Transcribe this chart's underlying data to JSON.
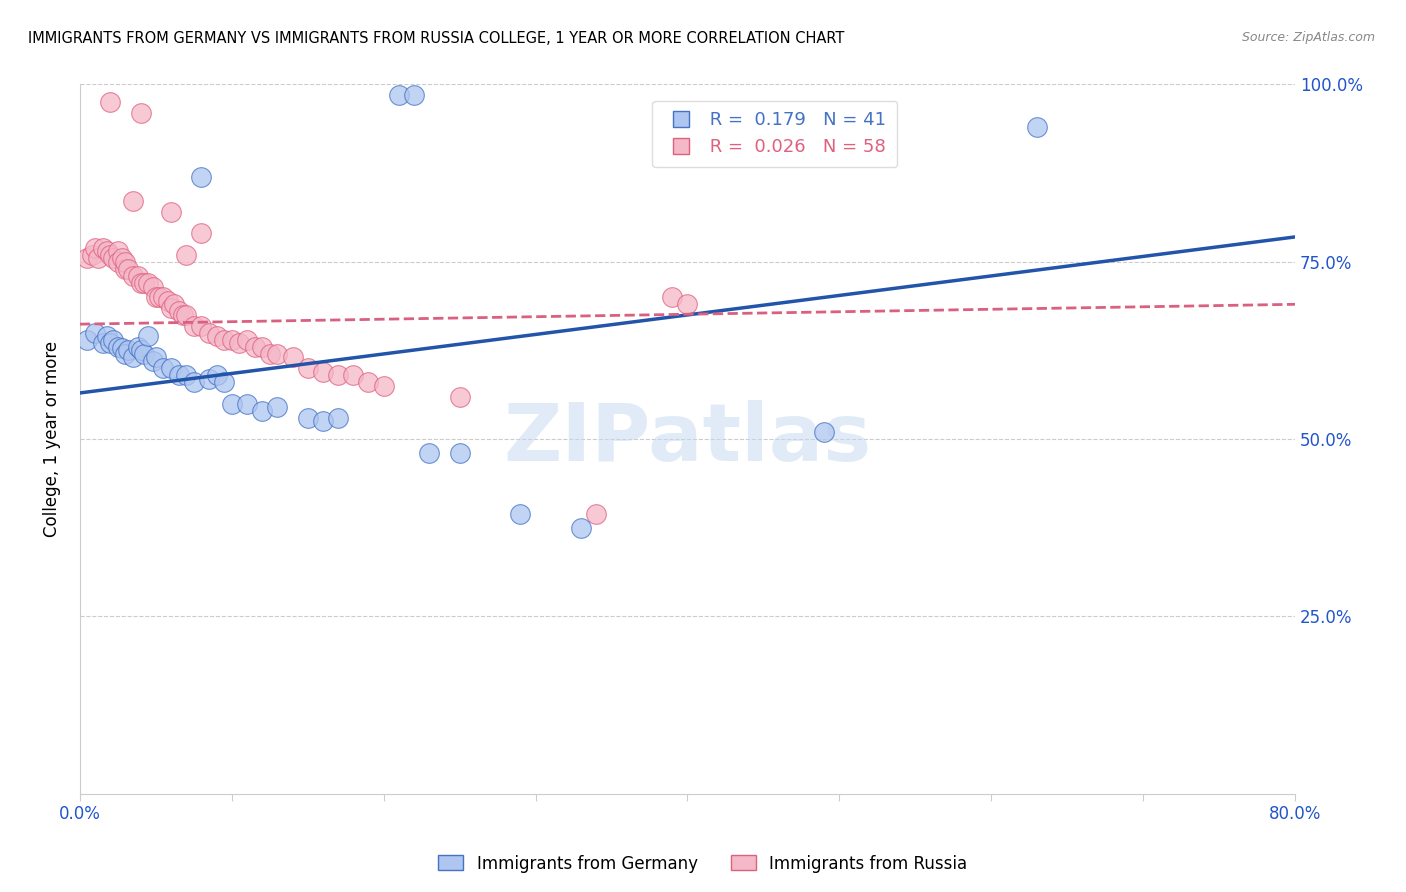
{
  "title": "IMMIGRANTS FROM GERMANY VS IMMIGRANTS FROM RUSSIA COLLEGE, 1 YEAR OR MORE CORRELATION CHART",
  "source": "Source: ZipAtlas.com",
  "ylabel": "College, 1 year or more",
  "xlim": [
    0.0,
    0.8
  ],
  "ylim": [
    0.0,
    1.0
  ],
  "legend_blue_R": "0.179",
  "legend_blue_N": "41",
  "legend_pink_R": "0.026",
  "legend_pink_N": "58",
  "blue_fill": "#aec6f0",
  "blue_edge": "#4472c4",
  "pink_fill": "#f4b8c8",
  "pink_edge": "#e06080",
  "blue_line_color": "#2255aa",
  "pink_line_color": "#d96080",
  "watermark_color": "#c5d8f0",
  "germany_x": [
    0.005,
    0.01,
    0.015,
    0.018,
    0.02,
    0.022,
    0.025,
    0.028,
    0.03,
    0.032,
    0.035,
    0.038,
    0.04,
    0.042,
    0.045,
    0.048,
    0.05,
    0.055,
    0.06,
    0.065,
    0.07,
    0.075,
    0.08,
    0.085,
    0.09,
    0.095,
    0.1,
    0.11,
    0.12,
    0.13,
    0.15,
    0.16,
    0.17,
    0.21,
    0.22,
    0.23,
    0.25,
    0.29,
    0.33,
    0.49,
    0.63
  ],
  "germany_y": [
    0.64,
    0.65,
    0.635,
    0.645,
    0.635,
    0.64,
    0.63,
    0.628,
    0.62,
    0.625,
    0.615,
    0.63,
    0.625,
    0.62,
    0.645,
    0.61,
    0.615,
    0.6,
    0.6,
    0.59,
    0.59,
    0.58,
    0.87,
    0.585,
    0.59,
    0.58,
    0.55,
    0.55,
    0.54,
    0.545,
    0.53,
    0.525,
    0.53,
    0.985,
    0.985,
    0.48,
    0.48,
    0.395,
    0.375,
    0.51,
    0.94
  ],
  "russia_x": [
    0.005,
    0.008,
    0.01,
    0.012,
    0.015,
    0.018,
    0.02,
    0.022,
    0.025,
    0.025,
    0.028,
    0.03,
    0.03,
    0.032,
    0.035,
    0.038,
    0.04,
    0.042,
    0.045,
    0.048,
    0.05,
    0.052,
    0.055,
    0.058,
    0.06,
    0.062,
    0.065,
    0.068,
    0.07,
    0.075,
    0.08,
    0.085,
    0.09,
    0.095,
    0.1,
    0.105,
    0.11,
    0.115,
    0.12,
    0.125,
    0.13,
    0.14,
    0.15,
    0.16,
    0.17,
    0.18,
    0.19,
    0.2,
    0.02,
    0.04,
    0.06,
    0.08,
    0.25,
    0.34,
    0.39,
    0.4,
    0.035,
    0.07
  ],
  "russia_y": [
    0.755,
    0.76,
    0.77,
    0.755,
    0.77,
    0.765,
    0.76,
    0.755,
    0.765,
    0.75,
    0.755,
    0.74,
    0.75,
    0.74,
    0.73,
    0.73,
    0.72,
    0.72,
    0.72,
    0.715,
    0.7,
    0.7,
    0.7,
    0.695,
    0.685,
    0.69,
    0.68,
    0.675,
    0.675,
    0.66,
    0.66,
    0.65,
    0.645,
    0.64,
    0.64,
    0.635,
    0.64,
    0.63,
    0.63,
    0.62,
    0.62,
    0.615,
    0.6,
    0.595,
    0.59,
    0.59,
    0.58,
    0.575,
    0.975,
    0.96,
    0.82,
    0.79,
    0.56,
    0.395,
    0.7,
    0.69,
    0.835,
    0.76
  ]
}
